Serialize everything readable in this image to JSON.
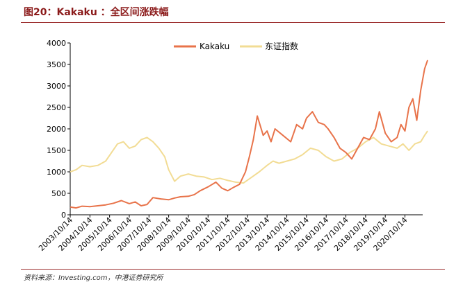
{
  "header": {
    "title": "图20：Kakaku ：全区间涨跌幅"
  },
  "footer": {
    "source": "资料来源：Investing.com，中港证券研究所"
  },
  "colors": {
    "kakaku": "#e8734a",
    "dongzheng": "#f2dc94",
    "rule": "#9b2d2d",
    "title": "#8b1a1a"
  },
  "chart_data": {
    "type": "line",
    "title": "",
    "xlabel": "",
    "ylabel": "",
    "ylim": [
      0,
      4000
    ],
    "yticks": [
      "0",
      "500",
      "1000",
      "1500",
      "2000",
      "2500",
      "3000",
      "3500",
      "4000"
    ],
    "categories": [
      "2003/10/14",
      "2004/10/14",
      "2005/10/14",
      "2006/10/14",
      "2007/10/14",
      "2008/10/14",
      "2009/10/14",
      "2010/10/14",
      "2011/10/14",
      "2012/10/14",
      "2013/10/14",
      "2014/10/14",
      "2015/10/14",
      "2016/10/14",
      "2017/10/14",
      "2018/10/14",
      "2019/10/14",
      "2020/10/14"
    ],
    "legend_position": "top-center",
    "series": [
      {
        "name": "Kakaku",
        "color": "#e8734a",
        "x": [
          0,
          0.3,
          0.6,
          1.0,
          1.4,
          1.8,
          2.2,
          2.6,
          3.0,
          3.3,
          3.6,
          3.9,
          4.2,
          4.6,
          5.0,
          5.3,
          5.6,
          6.0,
          6.3,
          6.6,
          7.0,
          7.4,
          7.7,
          8.0,
          8.3,
          8.6,
          8.9,
          9.1,
          9.3,
          9.5,
          9.8,
          10.0,
          10.2,
          10.4,
          10.8,
          11.2,
          11.5,
          11.8,
          12.0,
          12.3,
          12.6,
          12.9,
          13.1,
          13.4,
          13.7,
          14.0,
          14.3,
          14.6,
          14.9,
          15.2,
          15.5,
          15.7,
          16.0,
          16.3,
          16.6,
          16.8,
          17.0,
          17.2,
          17.4,
          17.6,
          17.8,
          18.0,
          18.15
        ],
        "values": [
          180,
          160,
          200,
          190,
          210,
          230,
          270,
          330,
          260,
          300,
          210,
          240,
          400,
          370,
          350,
          390,
          420,
          430,
          470,
          560,
          650,
          760,
          620,
          560,
          640,
          710,
          1000,
          1350,
          1750,
          2300,
          1850,
          1950,
          1700,
          2000,
          1850,
          1700,
          2100,
          2000,
          2250,
          2400,
          2150,
          2100,
          2000,
          1800,
          1550,
          1450,
          1300,
          1550,
          1800,
          1750,
          2000,
          2400,
          1900,
          1700,
          1800,
          2100,
          1950,
          2500,
          2700,
          2200,
          2900,
          3400,
          3600
        ]
      },
      {
        "name": "东证指数",
        "color": "#f2dc94",
        "x": [
          0,
          0.3,
          0.6,
          1.0,
          1.4,
          1.8,
          2.1,
          2.4,
          2.7,
          3.0,
          3.3,
          3.6,
          3.9,
          4.2,
          4.5,
          4.8,
          5.0,
          5.3,
          5.6,
          6.0,
          6.4,
          6.8,
          7.2,
          7.6,
          8.0,
          8.4,
          8.8,
          9.2,
          9.6,
          10.0,
          10.3,
          10.6,
          11.0,
          11.4,
          11.8,
          12.2,
          12.6,
          13.0,
          13.4,
          13.8,
          14.2,
          14.6,
          15.0,
          15.4,
          15.8,
          16.2,
          16.6,
          16.9,
          17.2,
          17.5,
          17.8,
          18.0,
          18.15
        ],
        "values": [
          1000,
          1050,
          1150,
          1120,
          1150,
          1250,
          1450,
          1650,
          1700,
          1550,
          1600,
          1750,
          1800,
          1700,
          1550,
          1350,
          1050,
          780,
          900,
          950,
          900,
          880,
          820,
          850,
          800,
          760,
          740,
          870,
          1000,
          1150,
          1250,
          1200,
          1250,
          1300,
          1400,
          1550,
          1500,
          1350,
          1250,
          1300,
          1450,
          1550,
          1700,
          1800,
          1650,
          1600,
          1550,
          1650,
          1500,
          1650,
          1700,
          1850,
          1950
        ]
      }
    ]
  }
}
